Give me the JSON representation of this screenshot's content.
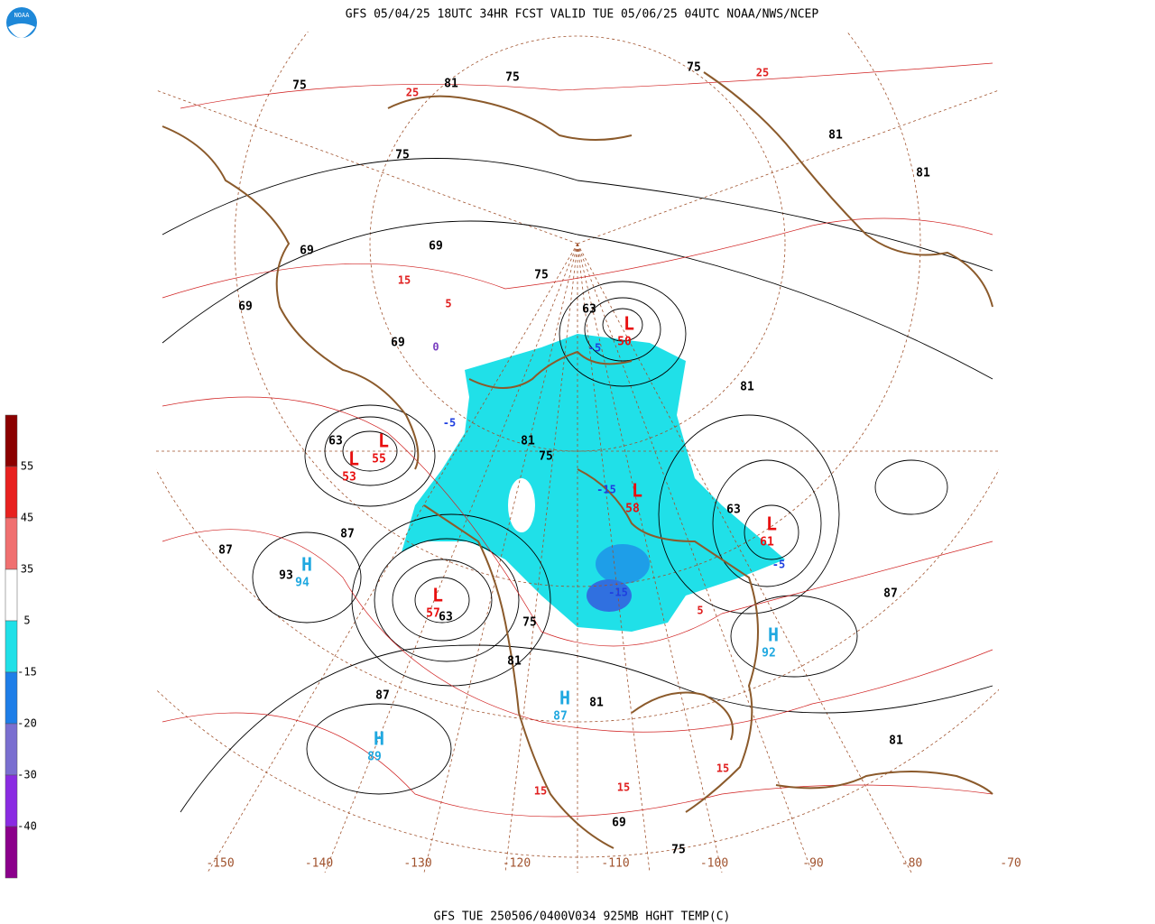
{
  "header": {
    "title": "GFS 05/04/25 18UTC 34HR FCST VALID TUE 05/06/25 04UTC NOAA/NWS/NCEP",
    "logo": "NOAA"
  },
  "footer": {
    "caption": "GFS TUE 250506/0400V034 925MB HGHT TEMP(C)"
  },
  "legend": {
    "colors": [
      "#8b0000",
      "#e8211f",
      "#f07070",
      "#ffffff",
      "#20e0e8",
      "#1e7ee8",
      "#7a6fd0",
      "#8a2be2",
      "#8b008b"
    ],
    "labels": [
      "55",
      "45",
      "35",
      "5",
      "-15",
      "-20",
      "-30",
      "-40"
    ]
  },
  "longitudes": [
    "-150",
    "-140",
    "-130",
    "-120",
    "-110",
    "-100",
    "-90",
    "-80",
    "-70"
  ],
  "centers": [
    {
      "symbol": "L",
      "value": "55"
    },
    {
      "symbol": "L",
      "value": "53"
    },
    {
      "symbol": "H",
      "value": "94"
    },
    {
      "symbol": "L",
      "value": "57"
    },
    {
      "symbol": "H",
      "value": "89"
    },
    {
      "symbol": "H",
      "value": "87"
    },
    {
      "symbol": "L",
      "value": "50"
    },
    {
      "symbol": "L",
      "value": "58"
    },
    {
      "symbol": "L",
      "value": "61"
    },
    {
      "symbol": "H",
      "value": "92"
    }
  ],
  "height_labels": [
    "75",
    "75",
    "81",
    "75",
    "81",
    "75",
    "69",
    "69",
    "69",
    "75",
    "69",
    "63",
    "63",
    "81",
    "75",
    "87",
    "87",
    "93",
    "63",
    "75",
    "81",
    "81",
    "87",
    "81",
    "81",
    "75",
    "69",
    "63",
    "87",
    "81"
  ],
  "temp_labels": [
    "25",
    "25",
    "15",
    "5",
    "0",
    "-5",
    "-5",
    "-15",
    "-15",
    "5",
    "15",
    "15",
    "15",
    "-5"
  ]
}
